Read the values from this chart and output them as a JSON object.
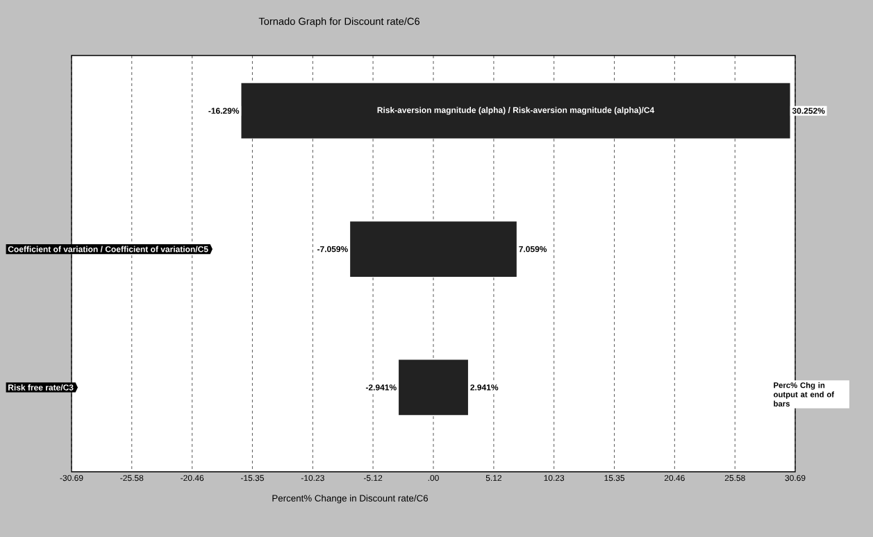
{
  "chart_data": {
    "type": "bar",
    "orientation": "horizontal",
    "title": "Tornado Graph for Discount rate/C6",
    "xlabel": "Percent% Change in Discount rate/C6",
    "categories": [
      "Risk-aversion magnitude (alpha) / Risk-aversion magnitude (alpha)/C4",
      "Coefficient of variation / Coefficient of variation/C5",
      "Risk free rate/C3"
    ],
    "base": [
      -16.29,
      -7.059,
      -2.941
    ],
    "values": [
      46.542,
      14.118,
      5.882
    ],
    "color": "#222222",
    "xlim": [
      -30.69,
      30.69
    ],
    "xticks": [
      -30.69,
      -25.58,
      -20.46,
      -15.35,
      -10.23,
      -5.12,
      {
        "value": 0,
        "label": ".00"
      },
      5.12,
      10.23,
      15.35,
      20.46,
      25.58,
      30.69
    ],
    "grid": "x",
    "annotations": [
      {
        "text": "-16.29%",
        "x": -16.29,
        "y": "Risk-aversion magnitude (alpha) / Risk-aversion magnitude (alpha)/C4"
      },
      {
        "text": "30.252%",
        "x": 30.252,
        "y": "Risk-aversion magnitude (alpha) / Risk-aversion magnitude (alpha)/C4"
      },
      {
        "text": "-7.059%",
        "x": -7.059,
        "y": "Coefficient of variation / Coefficient of variation/C5"
      },
      {
        "text": "7.059%",
        "x": 7.059,
        "y": "Coefficient of variation / Coefficient of variation/C5"
      },
      {
        "text": "-2.941%",
        "x": -2.941,
        "y": "Risk free rate/C3"
      },
      {
        "text": "2.941%",
        "x": 2.941,
        "y": "Risk free rate/C3"
      },
      "Perc% Chg in output at end of bars"
    ]
  }
}
